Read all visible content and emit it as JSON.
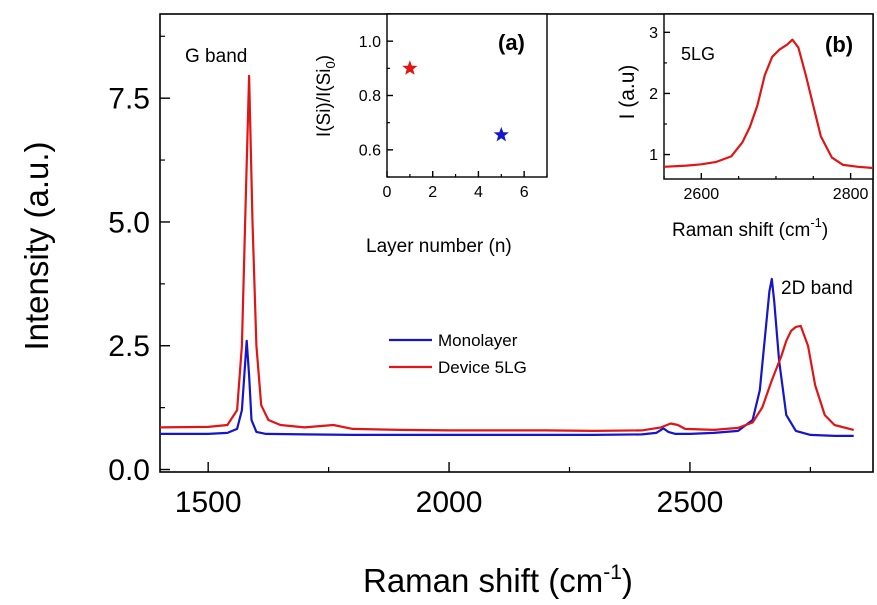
{
  "chart_data": [
    {
      "type": "line",
      "xlabel": "Raman shift (cm",
      "xlabel_sup": "-1",
      "xlabel_close": ")",
      "ylabel": "Intensity (a.u.)",
      "xlim": [
        1400,
        2880
      ],
      "ylim": [
        -0.05,
        9.2
      ],
      "xticks": [
        1500,
        2000,
        2500
      ],
      "xtick_labels": [
        "1500",
        "2000",
        "2500"
      ],
      "yticks": [
        0.0,
        2.5,
        5.0,
        7.5
      ],
      "ytick_labels": [
        "0.0",
        "2.5",
        "5.0",
        "7.5"
      ],
      "annotations": [
        "G band",
        "2D band"
      ],
      "legend_position": "center",
      "series": [
        {
          "name": "Monolayer",
          "color": "#1515cc",
          "x": [
            1400,
            1500,
            1540,
            1560,
            1570,
            1575,
            1580,
            1585,
            1590,
            1600,
            1620,
            1700,
            1800,
            1900,
            2000,
            2100,
            2200,
            2300,
            2400,
            2430,
            2445,
            2455,
            2470,
            2500,
            2550,
            2600,
            2630,
            2645,
            2655,
            2665,
            2670,
            2675,
            2685,
            2700,
            2720,
            2750,
            2800,
            2840
          ],
          "y": [
            0.72,
            0.72,
            0.74,
            0.82,
            1.2,
            1.9,
            2.6,
            1.9,
            1.0,
            0.76,
            0.72,
            0.71,
            0.7,
            0.7,
            0.7,
            0.7,
            0.7,
            0.7,
            0.71,
            0.74,
            0.83,
            0.76,
            0.72,
            0.72,
            0.74,
            0.78,
            1.0,
            1.6,
            2.6,
            3.6,
            3.85,
            3.4,
            2.2,
            1.1,
            0.78,
            0.7,
            0.68,
            0.68
          ]
        },
        {
          "name": "Device 5LG",
          "color": "#e01515",
          "x": [
            1400,
            1500,
            1540,
            1560,
            1570,
            1578,
            1585,
            1592,
            1600,
            1610,
            1625,
            1650,
            1700,
            1760,
            1800,
            1900,
            2000,
            2100,
            2200,
            2300,
            2400,
            2440,
            2460,
            2475,
            2490,
            2550,
            2600,
            2630,
            2650,
            2670,
            2690,
            2700,
            2710,
            2720,
            2730,
            2745,
            2760,
            2780,
            2800,
            2840
          ],
          "y": [
            0.85,
            0.86,
            0.9,
            1.2,
            2.5,
            5.5,
            7.95,
            5.0,
            2.5,
            1.3,
            1.0,
            0.9,
            0.85,
            0.9,
            0.82,
            0.8,
            0.79,
            0.79,
            0.79,
            0.78,
            0.79,
            0.85,
            0.93,
            0.9,
            0.82,
            0.8,
            0.84,
            0.95,
            1.25,
            1.8,
            2.3,
            2.6,
            2.8,
            2.88,
            2.9,
            2.5,
            1.7,
            1.1,
            0.9,
            0.8
          ]
        }
      ]
    },
    {
      "type": "scatter",
      "label": "(a)",
      "xlabel": "Layer number (n)",
      "ylabel": "I(Si)/I(Si",
      "ylabel_sub": "0",
      "ylabel_close": ")",
      "xlim": [
        0,
        7
      ],
      "ylim": [
        0.5,
        1.1
      ],
      "xticks": [
        0,
        2,
        4,
        6
      ],
      "xtick_labels": [
        "0",
        "2",
        "4",
        "6"
      ],
      "yticks": [
        0.6,
        0.8,
        1.0
      ],
      "ytick_labels": [
        "0.6",
        "0.8",
        "1.0"
      ],
      "series": [
        {
          "marker": "star",
          "color": "#e01515",
          "x": [
            1
          ],
          "y": [
            0.9
          ]
        },
        {
          "marker": "star",
          "color": "#1515cc",
          "x": [
            5
          ],
          "y": [
            0.655
          ]
        }
      ]
    },
    {
      "type": "line",
      "label": "(b)",
      "annotation": "5LG",
      "xlabel": "Raman shift (cm",
      "xlabel_sup": "-1",
      "xlabel_close": ")",
      "ylabel": "I (a.u)",
      "xlim": [
        2550,
        2830
      ],
      "ylim": [
        0.6,
        3.3
      ],
      "xticks": [
        2600,
        2800
      ],
      "xtick_labels": [
        "2600",
        "2800"
      ],
      "yticks": [
        1,
        2,
        3
      ],
      "ytick_labels": [
        "1",
        "2",
        "3"
      ],
      "series": [
        {
          "color": "#e01515",
          "x": [
            2550,
            2580,
            2600,
            2620,
            2640,
            2655,
            2665,
            2675,
            2685,
            2695,
            2705,
            2715,
            2722,
            2730,
            2740,
            2750,
            2760,
            2775,
            2790,
            2810,
            2830
          ],
          "y": [
            0.8,
            0.82,
            0.84,
            0.88,
            0.97,
            1.2,
            1.45,
            1.8,
            2.3,
            2.6,
            2.72,
            2.8,
            2.88,
            2.75,
            2.3,
            1.8,
            1.3,
            0.95,
            0.83,
            0.8,
            0.78
          ]
        }
      ]
    }
  ]
}
